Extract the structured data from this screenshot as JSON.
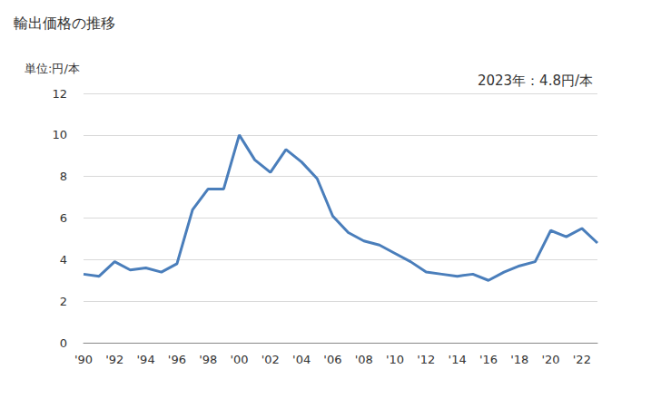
{
  "chart_data": {
    "type": "line",
    "title": "輸出価格の推移",
    "y_label": "単位:円/本",
    "annotation": "2023年：4.8円/本",
    "categories": [
      "'90",
      null,
      "'92",
      null,
      "'94",
      null,
      "'96",
      null,
      "'98",
      null,
      "'00",
      null,
      "'02",
      null,
      "'04",
      null,
      "'06",
      null,
      "'08",
      null,
      "'10",
      null,
      "'12",
      null,
      "'14",
      null,
      "'16",
      null,
      "'18",
      null,
      "'20",
      null,
      "'22",
      null
    ],
    "values": [
      3.3,
      3.2,
      3.9,
      3.5,
      3.6,
      3.4,
      3.8,
      6.4,
      7.4,
      7.4,
      10.0,
      8.8,
      8.2,
      9.3,
      8.7,
      7.9,
      6.1,
      5.3,
      4.9,
      4.7,
      4.3,
      3.9,
      3.4,
      3.3,
      3.2,
      3.3,
      3.0,
      3.4,
      3.7,
      3.9,
      5.4,
      5.1,
      5.5,
      4.8
    ],
    "color": "#4a7ebb",
    "ylim": [
      0,
      12
    ],
    "yticks": [
      0,
      2,
      4,
      6,
      8,
      10,
      12
    ],
    "grid": true
  }
}
